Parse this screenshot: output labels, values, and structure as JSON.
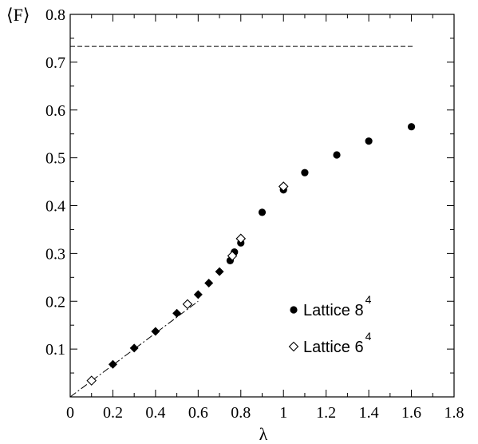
{
  "chart_data": {
    "type": "scatter",
    "xlabel": "λ",
    "ylabel": "⟨F⟩",
    "xlim": [
      0,
      1.8
    ],
    "ylim": [
      0,
      0.8
    ],
    "x_ticks": [
      0,
      0.2,
      0.4,
      0.6,
      0.8,
      1,
      1.2,
      1.4,
      1.6,
      1.8
    ],
    "x_tick_labels": [
      "0",
      "0.2",
      "0.4",
      "0.6",
      "0.8",
      "1",
      "1.2",
      "1.4",
      "1.6",
      "1.8"
    ],
    "y_ticks": [
      0.1,
      0.2,
      0.3,
      0.4,
      0.5,
      0.6,
      0.7,
      0.8
    ],
    "y_tick_labels": [
      "0.1",
      "0.2",
      "0.3",
      "0.4",
      "0.5",
      "0.6",
      "0.7",
      "0.8"
    ],
    "legend_position": "center-right",
    "series": [
      {
        "name": "Lattice 8",
        "name_superscript": "4",
        "marker": "filled-circle",
        "points": [
          {
            "x": 0.75,
            "y": 0.285
          },
          {
            "x": 0.77,
            "y": 0.303
          },
          {
            "x": 0.8,
            "y": 0.322
          },
          {
            "x": 0.9,
            "y": 0.386
          },
          {
            "x": 1.0,
            "y": 0.433
          },
          {
            "x": 1.1,
            "y": 0.469
          },
          {
            "x": 1.25,
            "y": 0.506
          },
          {
            "x": 1.4,
            "y": 0.535
          },
          {
            "x": 1.6,
            "y": 0.565
          }
        ]
      },
      {
        "name": "filled diamonds",
        "marker": "filled-diamond",
        "points": [
          {
            "x": 0.2,
            "y": 0.068
          },
          {
            "x": 0.3,
            "y": 0.102
          },
          {
            "x": 0.4,
            "y": 0.137
          },
          {
            "x": 0.5,
            "y": 0.175
          },
          {
            "x": 0.6,
            "y": 0.214
          },
          {
            "x": 0.65,
            "y": 0.238
          },
          {
            "x": 0.7,
            "y": 0.262
          }
        ]
      },
      {
        "name": "Lattice 6",
        "name_superscript": "4",
        "marker": "open-diamond",
        "points": [
          {
            "x": 0.1,
            "y": 0.034
          },
          {
            "x": 0.55,
            "y": 0.194
          },
          {
            "x": 0.76,
            "y": 0.295
          },
          {
            "x": 0.8,
            "y": 0.331
          },
          {
            "x": 1.0,
            "y": 0.44
          }
        ]
      }
    ],
    "reference_lines": [
      {
        "style": "dashed",
        "points": [
          {
            "x": 0.0,
            "y": 0.733
          },
          {
            "x": 1.61,
            "y": 0.733
          }
        ]
      },
      {
        "style": "dash-dot",
        "points": [
          {
            "x": 0.0,
            "y": 0.0
          },
          {
            "x": 0.3,
            "y": 0.1
          },
          {
            "x": 0.6,
            "y": 0.2
          }
        ]
      }
    ],
    "legend": [
      {
        "series": 0
      },
      {
        "series": 2
      }
    ]
  }
}
